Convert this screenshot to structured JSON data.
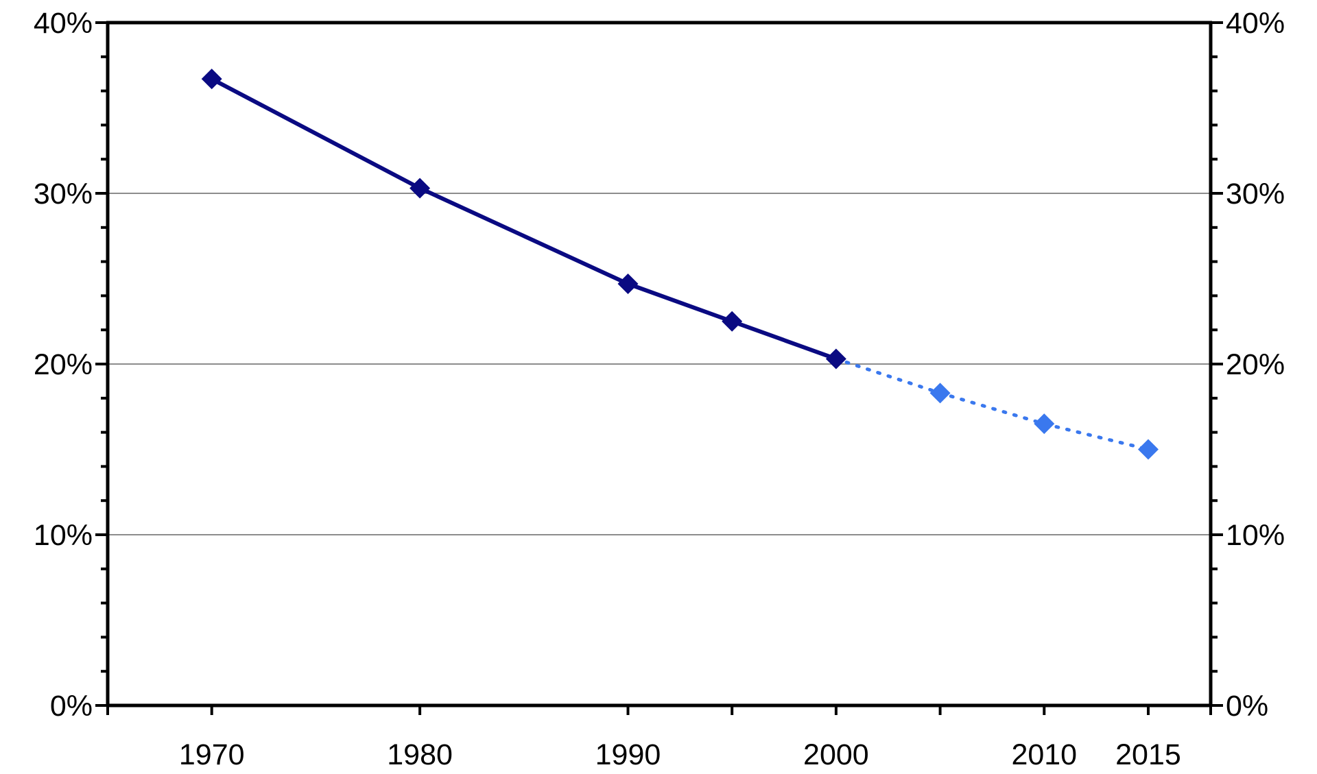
{
  "colors": {
    "actual": "#0a0a82",
    "projected": "#3a78ee",
    "gridline": "#8c8c8c",
    "axis": "#000000"
  },
  "chart_data": {
    "type": "line",
    "title": "",
    "xlabel": "",
    "ylabel": "",
    "xlim": [
      1965,
      2018
    ],
    "ylim": [
      0,
      40
    ],
    "y_ticks": [
      0,
      10,
      20,
      30,
      40
    ],
    "y_tick_labels": [
      "0%",
      "10%",
      "20%",
      "30%",
      "40%"
    ],
    "y_minor_step": 2,
    "x_ticks": [
      1970,
      1980,
      1990,
      1995,
      2000,
      2005,
      2010,
      2015
    ],
    "x_tick_labels": [
      "1970",
      "1980",
      "1990",
      "",
      "2000",
      "",
      "2010",
      "2015"
    ],
    "grid": "horizontal major gridlines",
    "secondary_y_axis": true,
    "series": [
      {
        "style": "solid",
        "marker": "diamond",
        "x": [
          1970,
          1980,
          1990,
          1995,
          2000
        ],
        "values": [
          36.7,
          30.3,
          24.7,
          22.5,
          20.3
        ]
      },
      {
        "style": "dotted",
        "marker": "diamond",
        "x": [
          2000,
          2005,
          2010,
          2015
        ],
        "values": [
          20.3,
          18.3,
          16.5,
          15.0
        ]
      }
    ]
  }
}
